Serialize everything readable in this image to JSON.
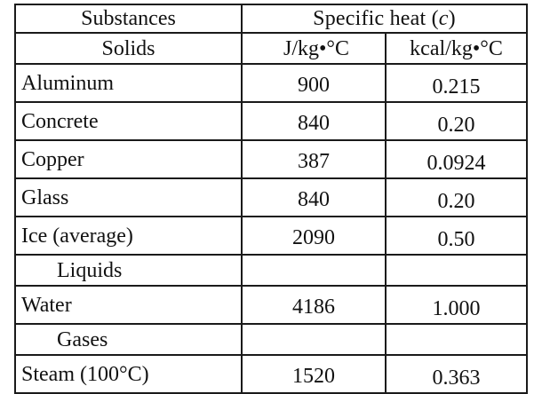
{
  "table": {
    "header_substances": "Substances",
    "header_specific_heat": "Specific heat (c)",
    "header_solids": "Solids",
    "unit_si": "J/kg•°C",
    "unit_kcal": "kcal/kg•°C",
    "solids": [
      {
        "name": "Aluminum",
        "j": "900",
        "kcal": "0.215"
      },
      {
        "name": "Concrete",
        "j": "840",
        "kcal": "0.20"
      },
      {
        "name": "Copper",
        "j": "387",
        "kcal": "0.0924"
      },
      {
        "name": "Glass",
        "j": "840",
        "kcal": "0.20"
      },
      {
        "name": "Ice (average)",
        "j": "2090",
        "kcal": "0.50"
      }
    ],
    "header_liquids": "Liquids",
    "liquids": [
      {
        "name": "Water",
        "j": "4186",
        "kcal": "1.000"
      }
    ],
    "header_gases": "Gases",
    "gases": [
      {
        "name": "Steam (100°C)",
        "j": "1520",
        "kcal": "0.363"
      }
    ]
  }
}
